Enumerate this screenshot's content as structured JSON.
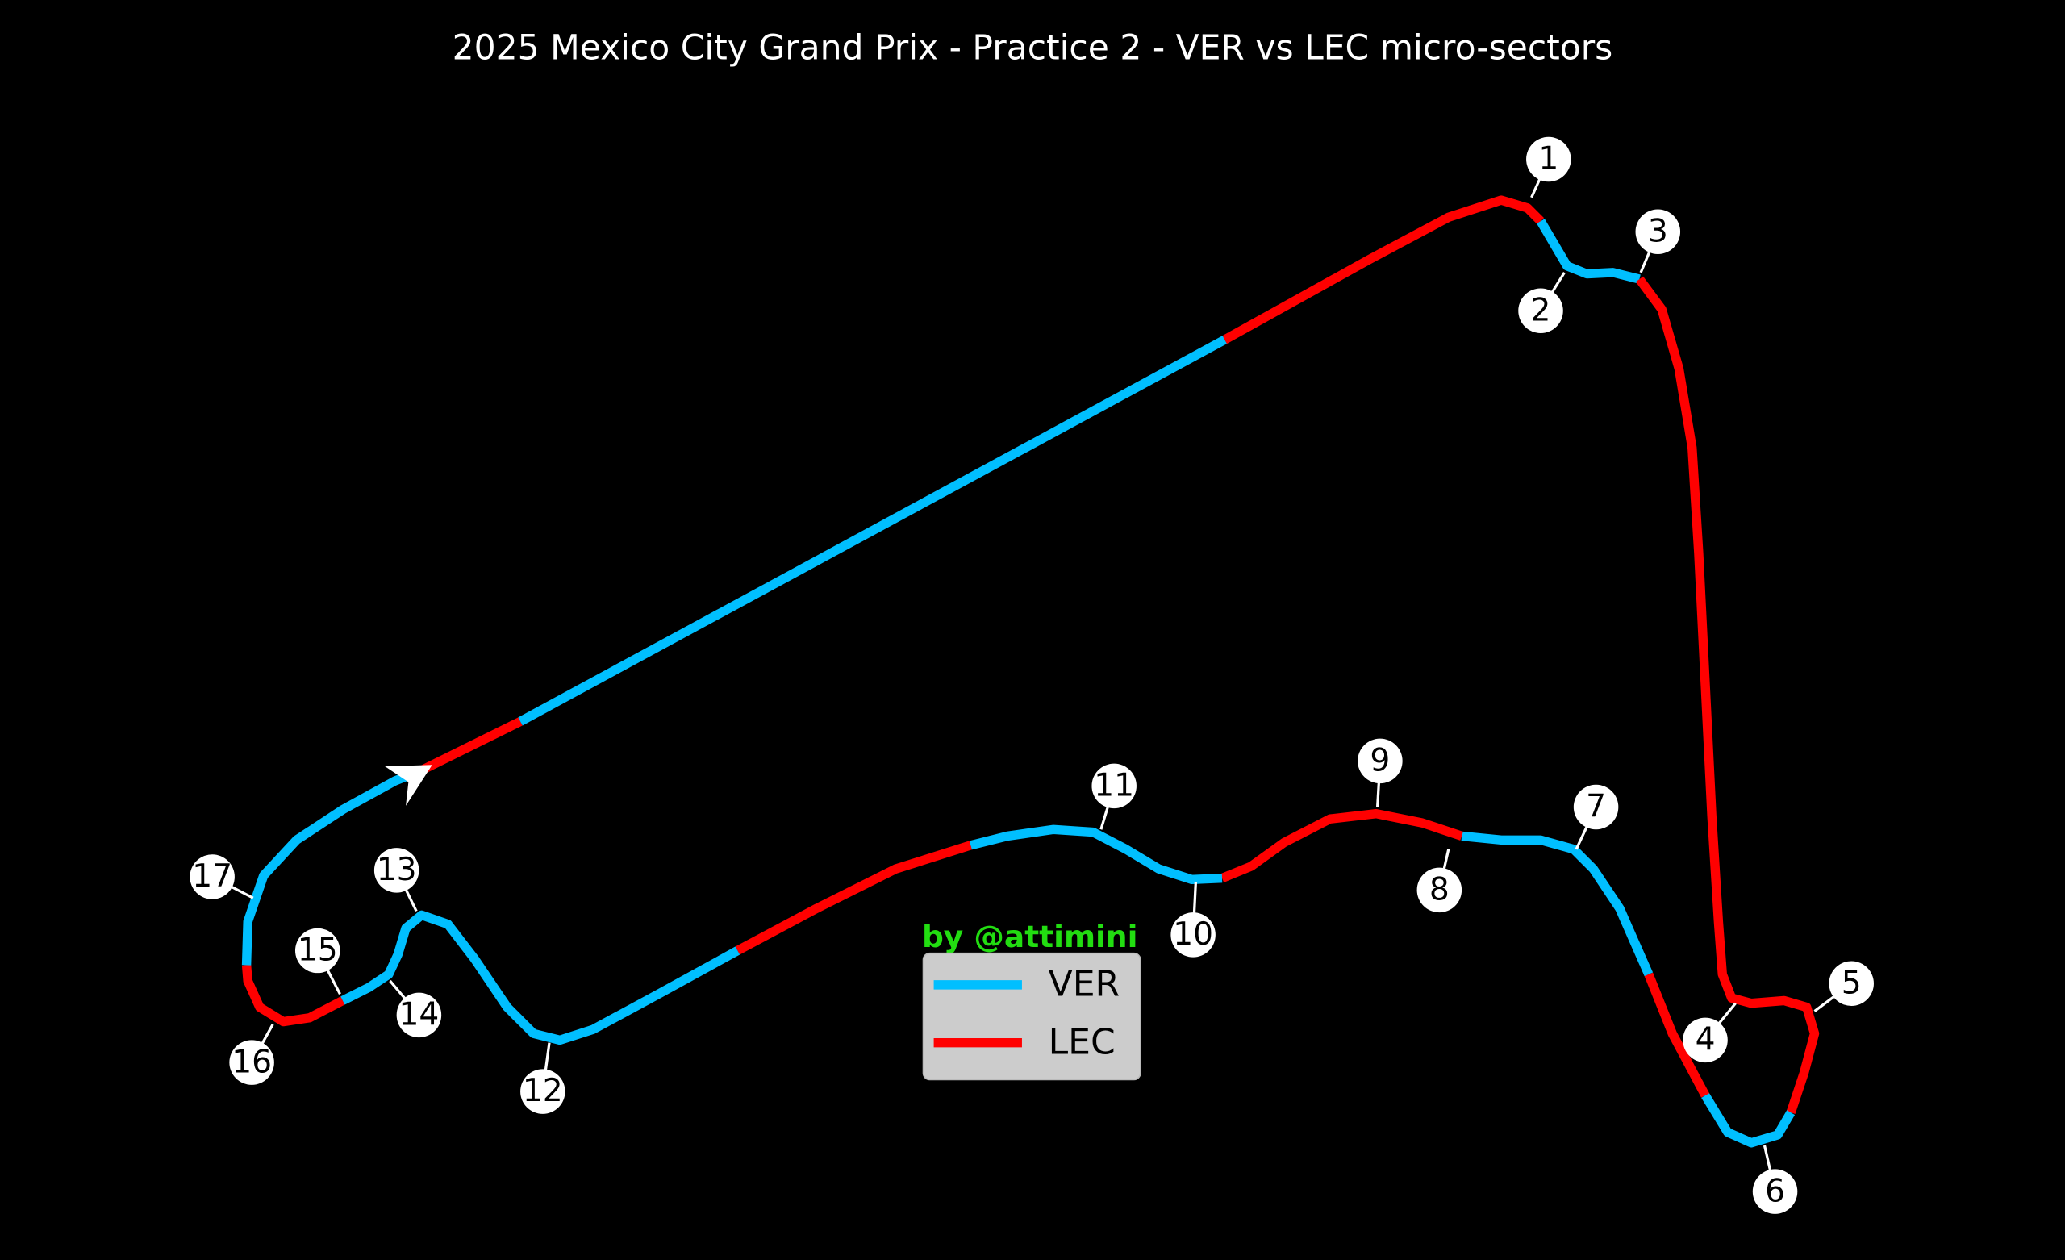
{
  "title": "2025 Mexico City Grand Prix - Practice 2 - VER vs LEC micro-sectors",
  "credit": "by @attimini",
  "legend": [
    {
      "name": "VER",
      "color": "#00bfff"
    },
    {
      "name": "LEC",
      "color": "#ff0000"
    }
  ],
  "corners": [
    1,
    2,
    3,
    4,
    5,
    6,
    7,
    8,
    9,
    10,
    11,
    12,
    13,
    14,
    15,
    16,
    17
  ]
}
